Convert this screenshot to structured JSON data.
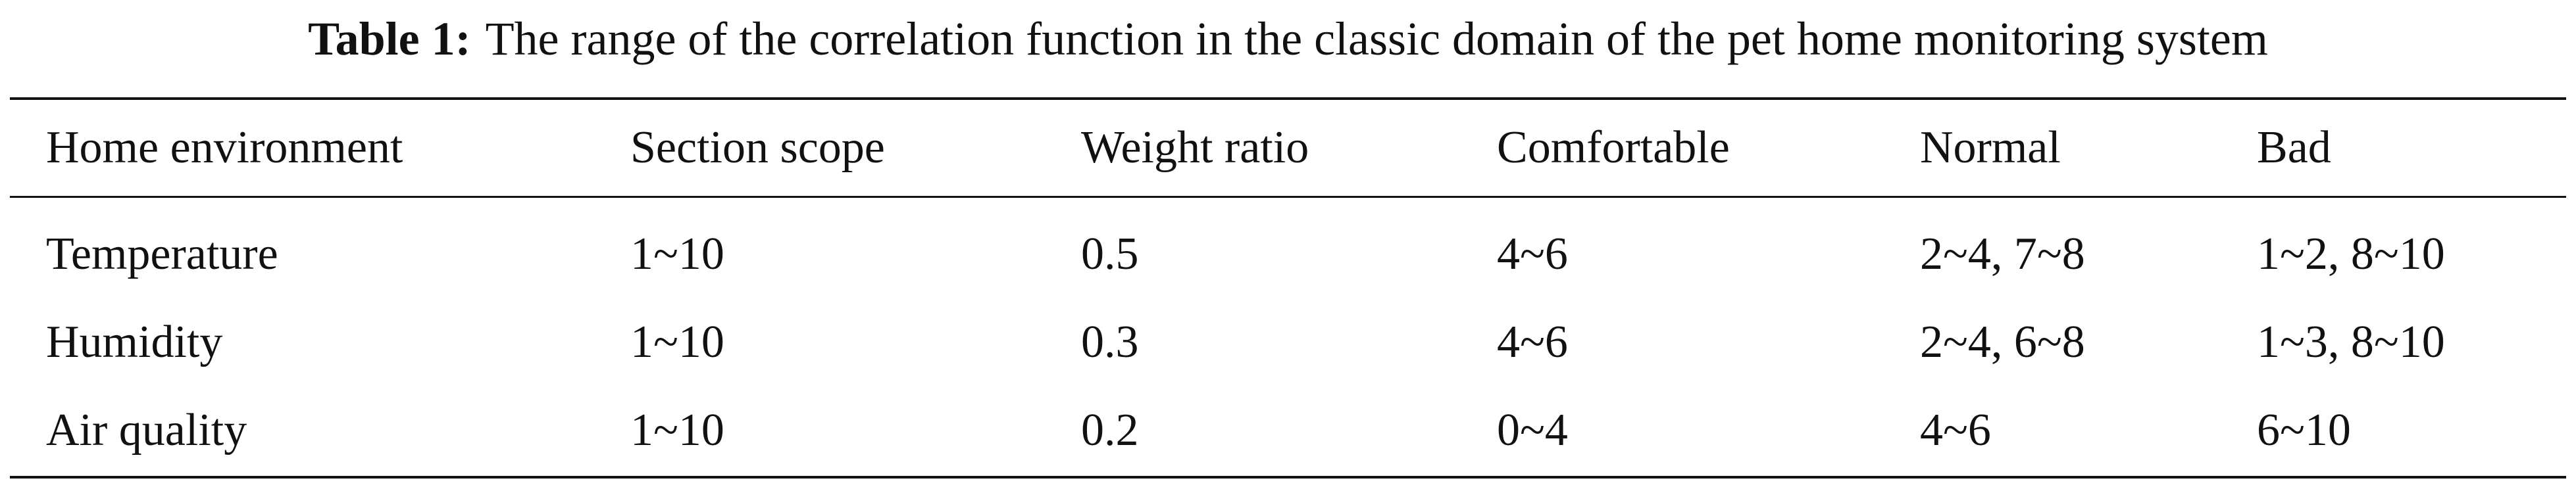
{
  "caption": {
    "label": "Table 1:",
    "text": "The range of the correlation function in the classic domain of the pet home monitoring system"
  },
  "table": {
    "header": [
      "Home environment",
      "Section scope",
      "Weight ratio",
      "Comfortable",
      "Normal",
      "Bad"
    ],
    "rows": [
      [
        "Temperature",
        "1~10",
        "0.5",
        "4~6",
        "2~4, 7~8",
        "1~2, 8~10"
      ],
      [
        "Humidity",
        "1~10",
        "0.3",
        "4~6",
        "2~4, 6~8",
        "1~3, 8~10"
      ],
      [
        "Air quality",
        "1~10",
        "0.2",
        "0~4",
        "4~6",
        "6~10"
      ]
    ]
  }
}
